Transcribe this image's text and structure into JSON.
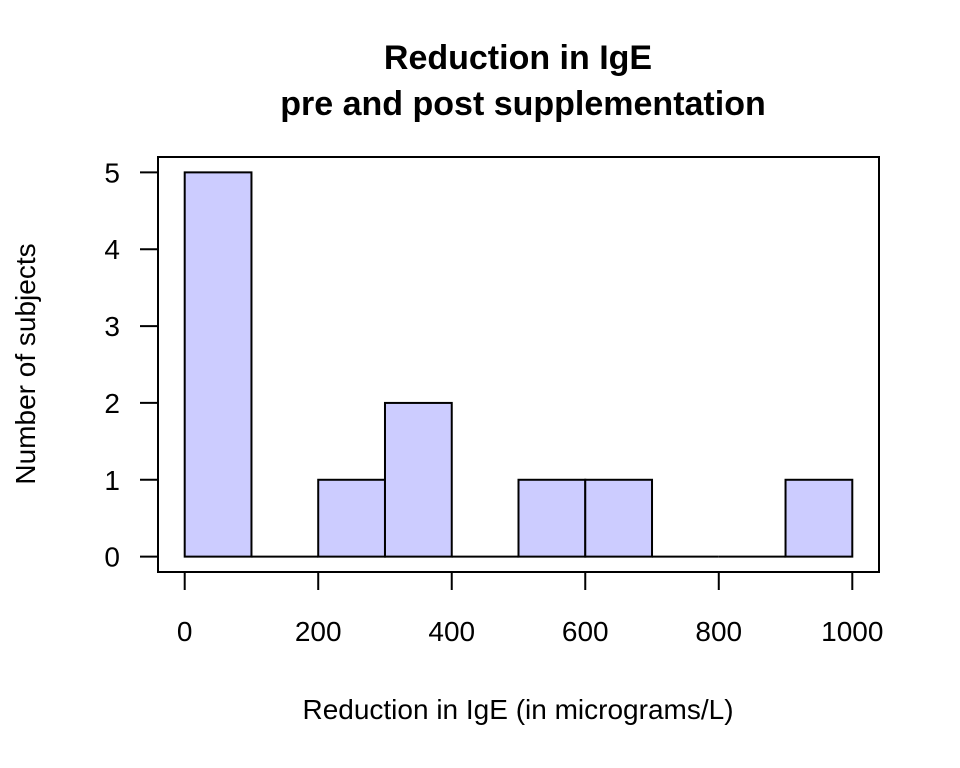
{
  "chart_data": {
    "type": "bar",
    "title_lines": [
      "Reduction in IgE",
      "pre and post supplementation"
    ],
    "xlabel": "Reduction in IgE (in micrograms/L)",
    "ylabel": "Number of subjects",
    "bins": [
      {
        "from": 0,
        "to": 100,
        "count": 5
      },
      {
        "from": 100,
        "to": 200,
        "count": 0
      },
      {
        "from": 200,
        "to": 300,
        "count": 1
      },
      {
        "from": 300,
        "to": 400,
        "count": 2
      },
      {
        "from": 400,
        "to": 500,
        "count": 0
      },
      {
        "from": 500,
        "to": 600,
        "count": 1
      },
      {
        "from": 600,
        "to": 700,
        "count": 1
      },
      {
        "from": 700,
        "to": 800,
        "count": 0
      },
      {
        "from": 800,
        "to": 900,
        "count": 0
      },
      {
        "from": 900,
        "to": 1000,
        "count": 1
      }
    ],
    "xticks": [
      0,
      200,
      400,
      600,
      800,
      1000
    ],
    "yticks": [
      0,
      1,
      2,
      3,
      4,
      5
    ],
    "xlim": [
      -40,
      1040
    ],
    "ylim": [
      -0.2,
      5.2
    ],
    "bar_color": "#ccccff",
    "edge_color": "#000000",
    "grid": false
  }
}
